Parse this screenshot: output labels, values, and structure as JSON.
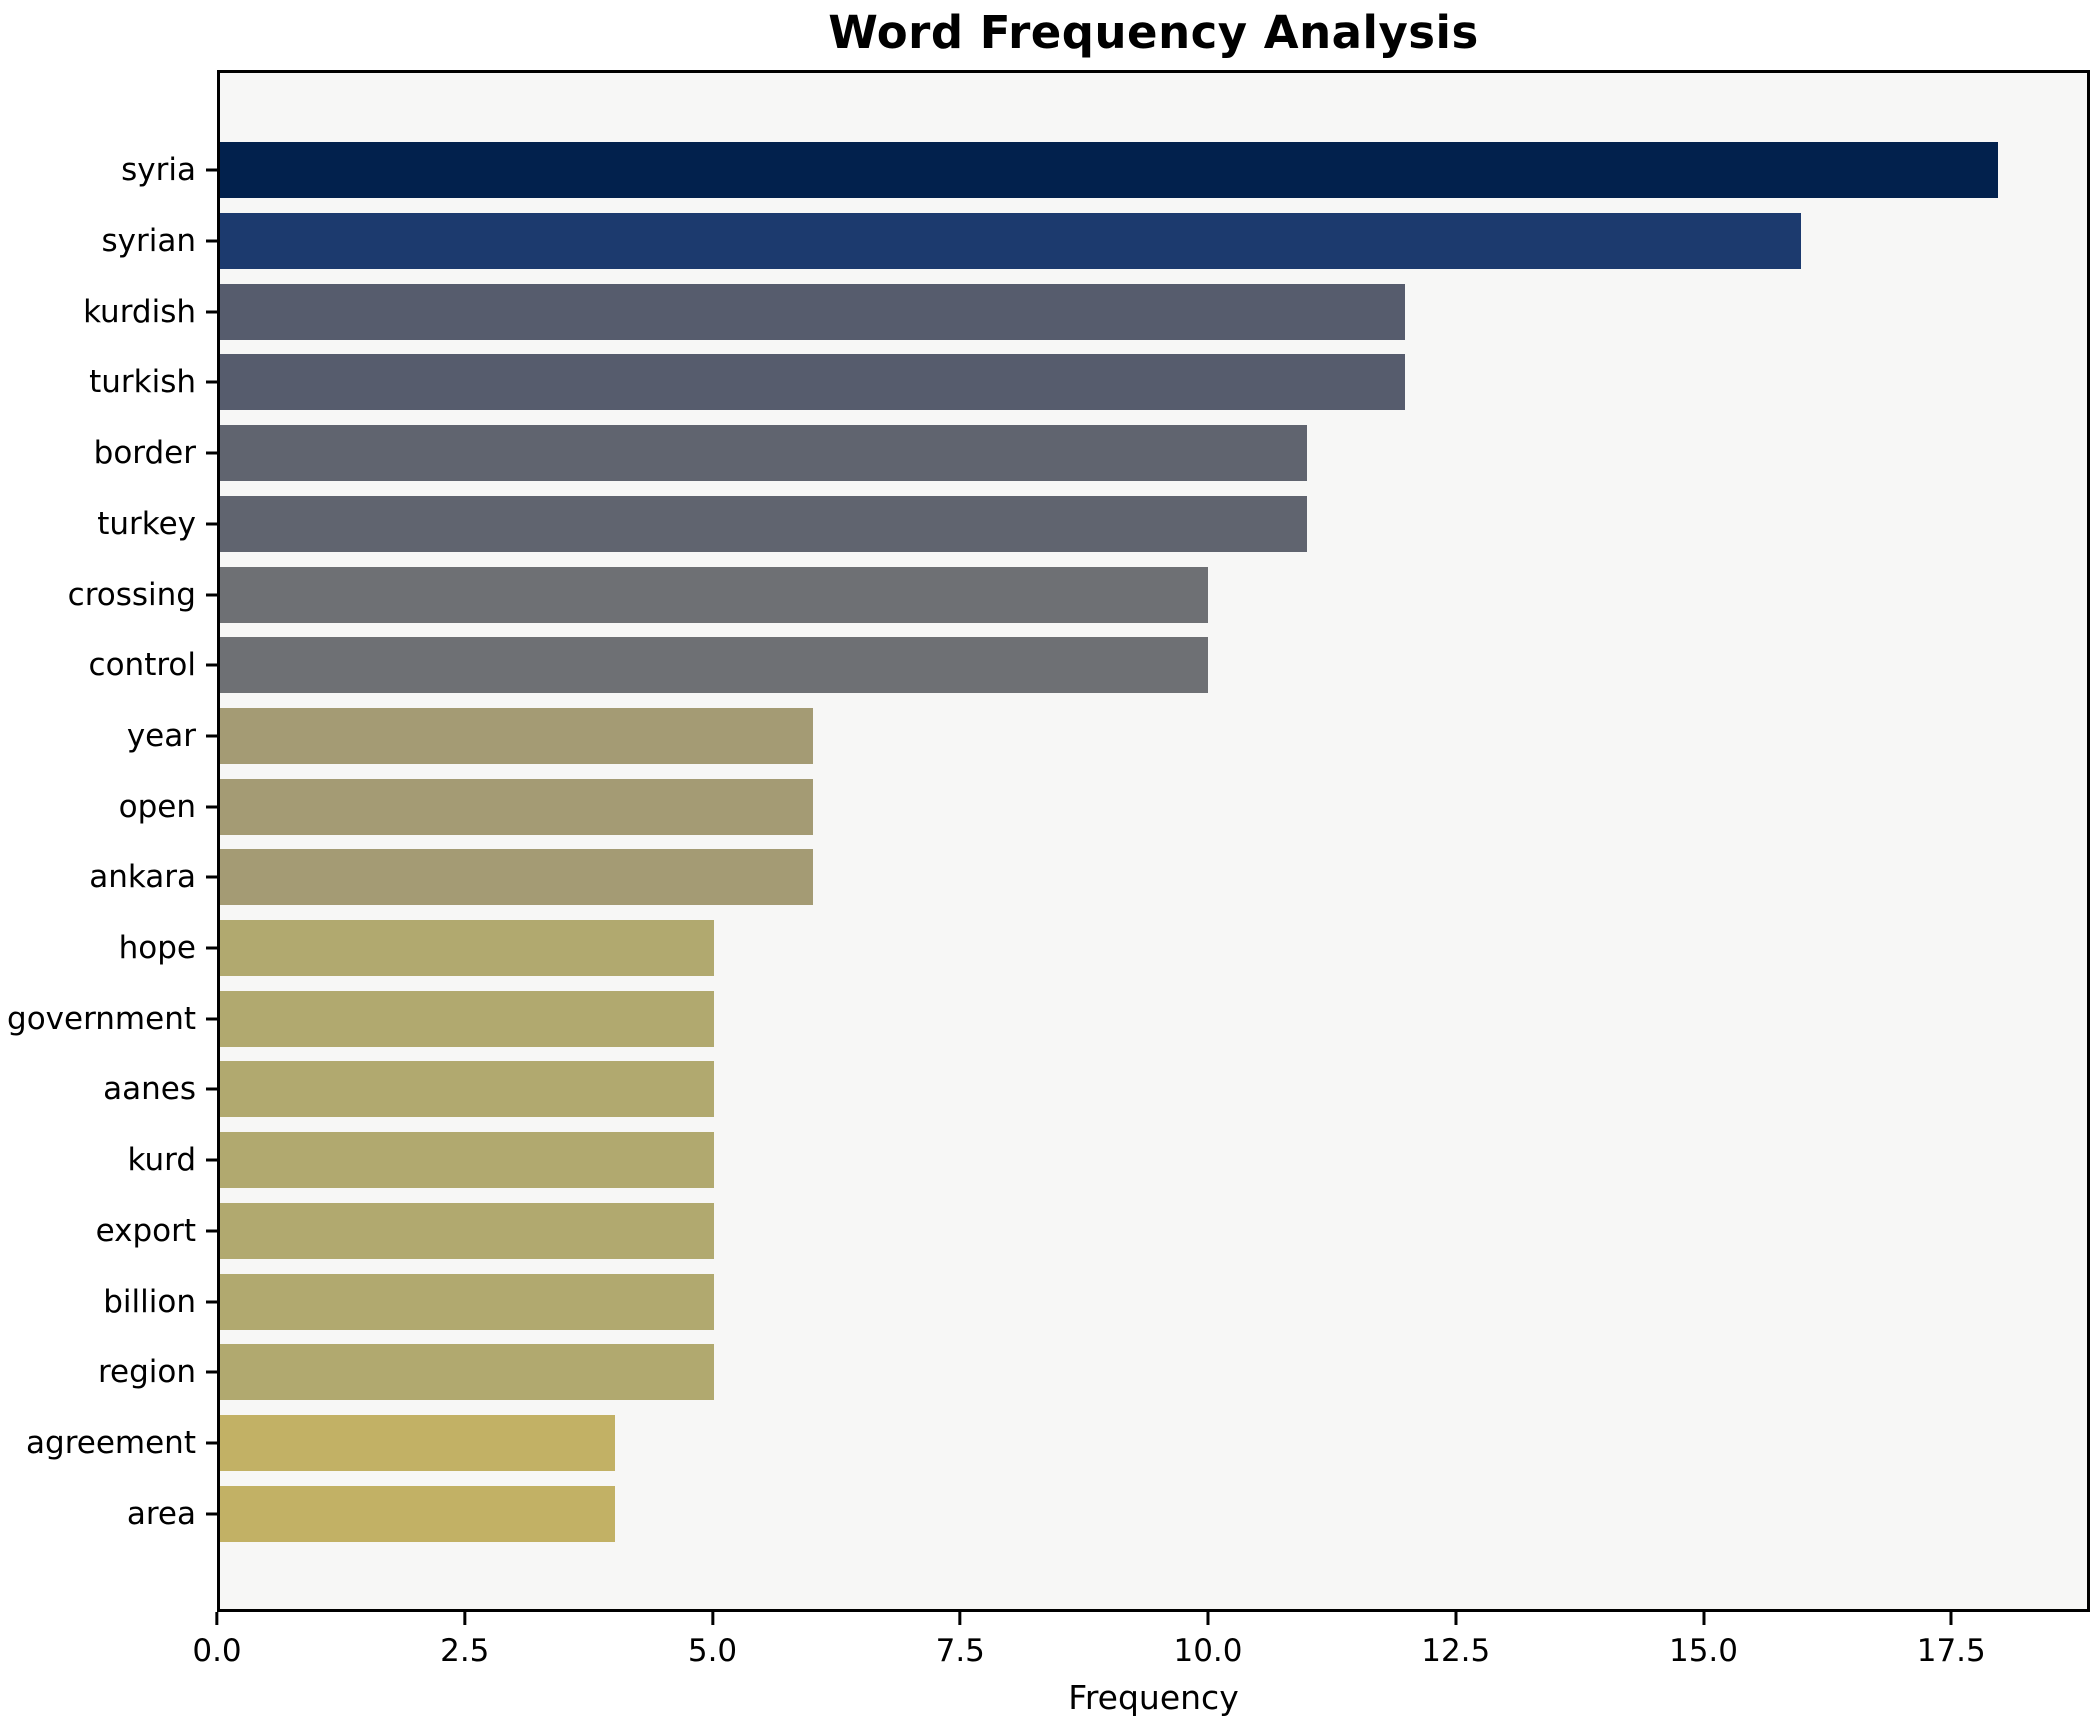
{
  "title": "Word Frequency Analysis",
  "chart_data": {
    "type": "bar",
    "orientation": "horizontal",
    "title": "Word Frequency Analysis",
    "xlabel": "Frequency",
    "ylabel": "",
    "xlim": [
      0,
      18.9
    ],
    "x_ticks": [
      0.0,
      2.5,
      5.0,
      7.5,
      10.0,
      12.5,
      15.0,
      17.5
    ],
    "x_tick_labels": [
      "0.0",
      "2.5",
      "5.0",
      "7.5",
      "10.0",
      "12.5",
      "15.0",
      "17.5"
    ],
    "grid": false,
    "legend": false,
    "plot_background": "#f7f7f6",
    "page_background": "#ffffff",
    "spine_color": "#000000",
    "categories": [
      "syria",
      "syrian",
      "kurdish",
      "turkish",
      "border",
      "turkey",
      "crossing",
      "control",
      "year",
      "open",
      "ankara",
      "hope",
      "government",
      "aanes",
      "kurd",
      "export",
      "billion",
      "region",
      "agreement",
      "area"
    ],
    "values": [
      18,
      16,
      12,
      12,
      11,
      11,
      10,
      10,
      6,
      6,
      6,
      5,
      5,
      5,
      5,
      5,
      5,
      5,
      4,
      4
    ],
    "bar_colors": [
      "#02214d",
      "#1c3a6e",
      "#565c6d",
      "#565c6d",
      "#60646f",
      "#60646f",
      "#6e7074",
      "#6e7074",
      "#a49b74",
      "#a49b74",
      "#a49b74",
      "#b1a96f",
      "#b1a96f",
      "#b1a96f",
      "#b1a96f",
      "#b1a96f",
      "#b1a96f",
      "#b1a96f",
      "#c2b165",
      "#c2b165"
    ]
  }
}
